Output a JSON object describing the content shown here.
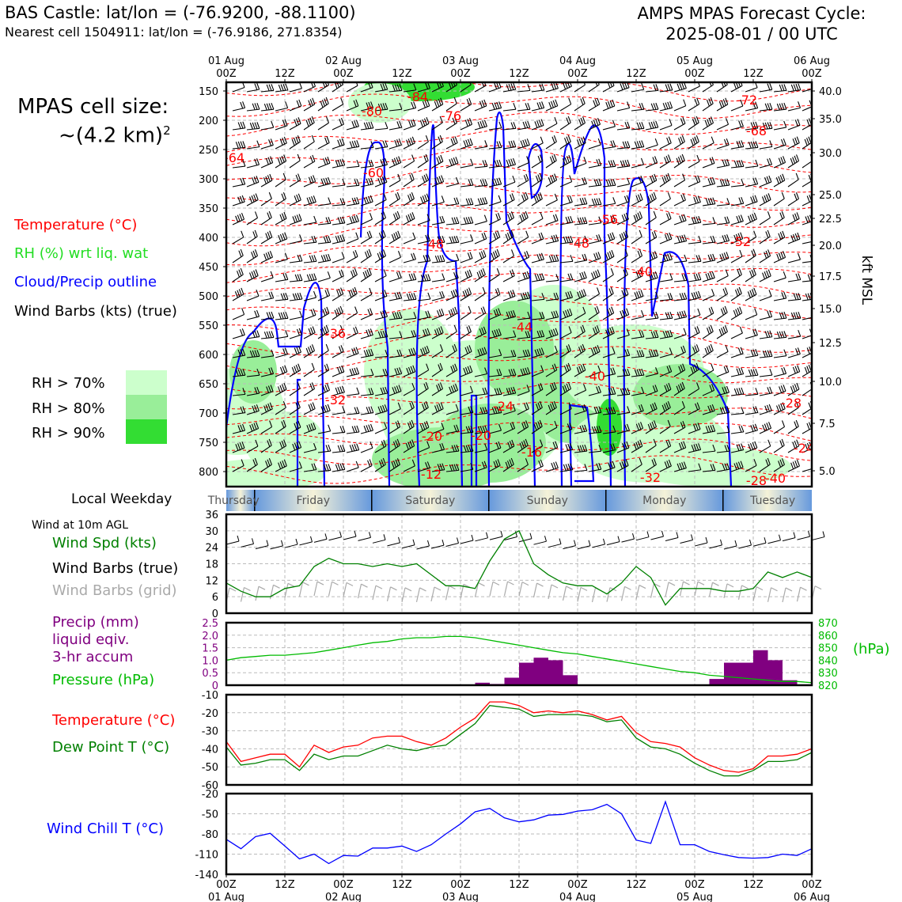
{
  "header": {
    "title_left": "BAS Castle: lat/lon = (-76.9200, -88.1100)",
    "subtitle_left": "Nearest cell 1504911: lat/lon = (-76.9186, 271.8354)",
    "title_right_1": "AMPS MPAS Forecast Cycle:",
    "title_right_2": "2025-08-01 / 00 UTC"
  },
  "legend": {
    "cell_size_1": "MPAS cell size:",
    "cell_size_2": "~(4.2 km)",
    "cell_size_sup": "2",
    "temperature": "Temperature (°C)",
    "rh": "RH (%) wrt liq. wat",
    "cloud": "Cloud/Precip outline",
    "wind_barbs": "Wind Barbs (kts) (true)",
    "rh70": "RH > 70%",
    "rh80": "RH > 80%",
    "rh90": "RH > 90%",
    "local_weekday": "Local Weekday",
    "wind_10m": "Wind at 10m AGL",
    "wind_spd": "Wind Spd (kts)",
    "wind_barbs_true": "Wind Barbs (true)",
    "wind_barbs_grid": "Wind Barbs (grid)",
    "precip_1": "Precip (mm)",
    "precip_2": "liquid eqiv.",
    "precip_3": "3-hr accum",
    "pressure": "Pressure (hPa)",
    "temp2": "Temperature (°C)",
    "dewpoint": "Dew Point T (°C)",
    "windchill": "Wind Chill T (°C)"
  },
  "colors": {
    "temperature": "#ff0000",
    "rh_label": "#22dd22",
    "rh70": "#ccffcc",
    "rh80": "#99ee99",
    "rh90": "#33dd33",
    "cloud": "#0000ff",
    "wind_spd": "#008000",
    "barbs_grid": "#aaaaaa",
    "precip": "#800080",
    "pressure": "#00bb00",
    "dewpoint": "#008000",
    "windchill": "#0000ff",
    "weekday_blue": "#6699dd",
    "weekday_cream": "#f5f2d8"
  },
  "time_axis": {
    "top_dates": [
      "01 Aug",
      "02 Aug",
      "03 Aug",
      "04 Aug",
      "05 Aug",
      "06 Aug"
    ],
    "top_ticks": [
      "00Z",
      "12Z",
      "00Z",
      "12Z",
      "00Z",
      "12Z",
      "00Z",
      "12Z",
      "00Z",
      "12Z",
      "00Z"
    ],
    "bottom_ticks": [
      "00Z",
      "12Z",
      "00Z",
      "12Z",
      "00Z",
      "12Z",
      "00Z",
      "12Z",
      "00Z",
      "12Z",
      "00Z"
    ],
    "bottom_dates": [
      "01 Aug",
      "02 Aug",
      "03 Aug",
      "04 Aug",
      "05 Aug",
      "06 Aug"
    ]
  },
  "weekdays": [
    "Thursday",
    "Friday",
    "Saturday",
    "Sunday",
    "Monday",
    "Tuesday"
  ],
  "chart_data": [
    {
      "type": "heatmap",
      "name": "cross-section",
      "x_range_hours": [
        0,
        120
      ],
      "y_axis_left_label_values": [
        "150",
        "200",
        "250",
        "300",
        "350",
        "400",
        "450",
        "500",
        "550",
        "600",
        "650",
        "700",
        "750",
        "800"
      ],
      "y_axis_right_label": "kft MSL",
      "y_axis_right_values": [
        "40.0",
        "35.0",
        "30.0",
        "25.0",
        "22.5",
        "20.0",
        "17.5",
        "15.0",
        "12.5",
        "10.0",
        "7.5",
        "5.0"
      ],
      "temperature_contour_labels": [
        "-84",
        "-80",
        "-76",
        "-64",
        "-60",
        "-56",
        "-52",
        "-48",
        "-48",
        "-44",
        "-40",
        "-36",
        "-32",
        "-28",
        "-24",
        "-24",
        "-20",
        "-20",
        "-16",
        "-12",
        "-72",
        "-68",
        "-32",
        "-28",
        "-40",
        "-40"
      ],
      "grid": true
    },
    {
      "type": "line",
      "name": "wind",
      "yticks": [
        "36",
        "30",
        "24",
        "18",
        "12",
        "6",
        "0"
      ],
      "ylim": [
        0,
        36
      ],
      "x_hours": [
        0,
        3,
        6,
        9,
        12,
        15,
        18,
        21,
        24,
        27,
        30,
        33,
        36,
        39,
        42,
        45,
        48,
        51,
        54,
        57,
        60,
        63,
        66,
        69,
        72,
        75,
        78,
        81,
        84,
        87,
        90,
        93,
        96,
        99,
        102,
        105,
        108,
        111,
        114,
        117,
        120
      ],
      "wind_speed": [
        11,
        8,
        6,
        6,
        9,
        10,
        17,
        20,
        18,
        18,
        17,
        18,
        17,
        18,
        14,
        10,
        10,
        9,
        19,
        27,
        30,
        18,
        14,
        11,
        10,
        10,
        7,
        11,
        17,
        13,
        3,
        9,
        9,
        9,
        8,
        8,
        9,
        15,
        13,
        15,
        13
      ]
    },
    {
      "type": "bar",
      "name": "precip_pressure",
      "precip_yticks": [
        "2.5",
        "2.0",
        "1.5",
        "1.0",
        "0.5",
        "0"
      ],
      "precip_ylim": [
        0,
        2.5
      ],
      "pressure_yticks": [
        "870",
        "860",
        "850",
        "840",
        "830",
        "820"
      ],
      "pressure_ylim": [
        820,
        870
      ],
      "pressure_unit": "(hPa)",
      "precip": [
        0,
        0,
        0,
        0,
        0,
        0,
        0,
        0,
        0,
        0,
        0,
        0,
        0,
        0,
        0,
        0,
        0,
        0,
        0.1,
        0.05,
        0.3,
        0.9,
        1.1,
        1.0,
        0.4,
        0,
        0,
        0,
        0,
        0,
        0,
        0,
        0,
        0,
        0.25,
        0.9,
        0.9,
        1.4,
        1.0,
        0.2,
        0
      ],
      "pressure": [
        840,
        842,
        843,
        844,
        844,
        845,
        846,
        848,
        850,
        852,
        854,
        855,
        857,
        858,
        858,
        859,
        859,
        858,
        856,
        854,
        852,
        850,
        848,
        846,
        845,
        843,
        841,
        839,
        837,
        835,
        833,
        831,
        830,
        828,
        827,
        826,
        825,
        824,
        823,
        823,
        822
      ]
    },
    {
      "type": "line",
      "name": "temperature",
      "yticks": [
        "-10",
        "-20",
        "-30",
        "-40",
        "-50",
        "-60"
      ],
      "ylim": [
        -60,
        -10
      ],
      "temperature": [
        -36,
        -47,
        -45,
        -43,
        -43,
        -50,
        -38,
        -42,
        -39,
        -38,
        -34,
        -33,
        -33,
        -36,
        -38,
        -34,
        -28,
        -23,
        -14,
        -14,
        -16,
        -20,
        -19,
        -20,
        -19,
        -21,
        -24,
        -22,
        -31,
        -36,
        -37,
        -39,
        -45,
        -49,
        -52,
        -53,
        -51,
        -44,
        -44,
        -43,
        -40
      ],
      "dew_point": [
        -39,
        -49,
        -48,
        -46,
        -46,
        -52,
        -43,
        -46,
        -44,
        -44,
        -41,
        -38,
        -40,
        -41,
        -39,
        -38,
        -32,
        -26,
        -16,
        -17,
        -18,
        -22,
        -21,
        -21,
        -21,
        -22,
        -25,
        -24,
        -34,
        -39,
        -40,
        -43,
        -48,
        -52,
        -55,
        -55,
        -52,
        -47,
        -47,
        -46,
        -42
      ]
    },
    {
      "type": "line",
      "name": "windchill",
      "yticks": [
        "-20",
        "-50",
        "-80",
        "-110",
        "-140"
      ],
      "ylim": [
        -140,
        -20
      ],
      "windchill": [
        -88,
        -102,
        -84,
        -79,
        -98,
        -117,
        -110,
        -124,
        -112,
        -113,
        -101,
        -101,
        -98,
        -106,
        -96,
        -80,
        -65,
        -47,
        -42,
        -56,
        -62,
        -59,
        -52,
        -51,
        -46,
        -44,
        -36,
        -50,
        -89,
        -94,
        -32,
        -96,
        -96,
        -106,
        -111,
        -115,
        -116,
        -115,
        -110,
        -112,
        -102
      ]
    }
  ]
}
